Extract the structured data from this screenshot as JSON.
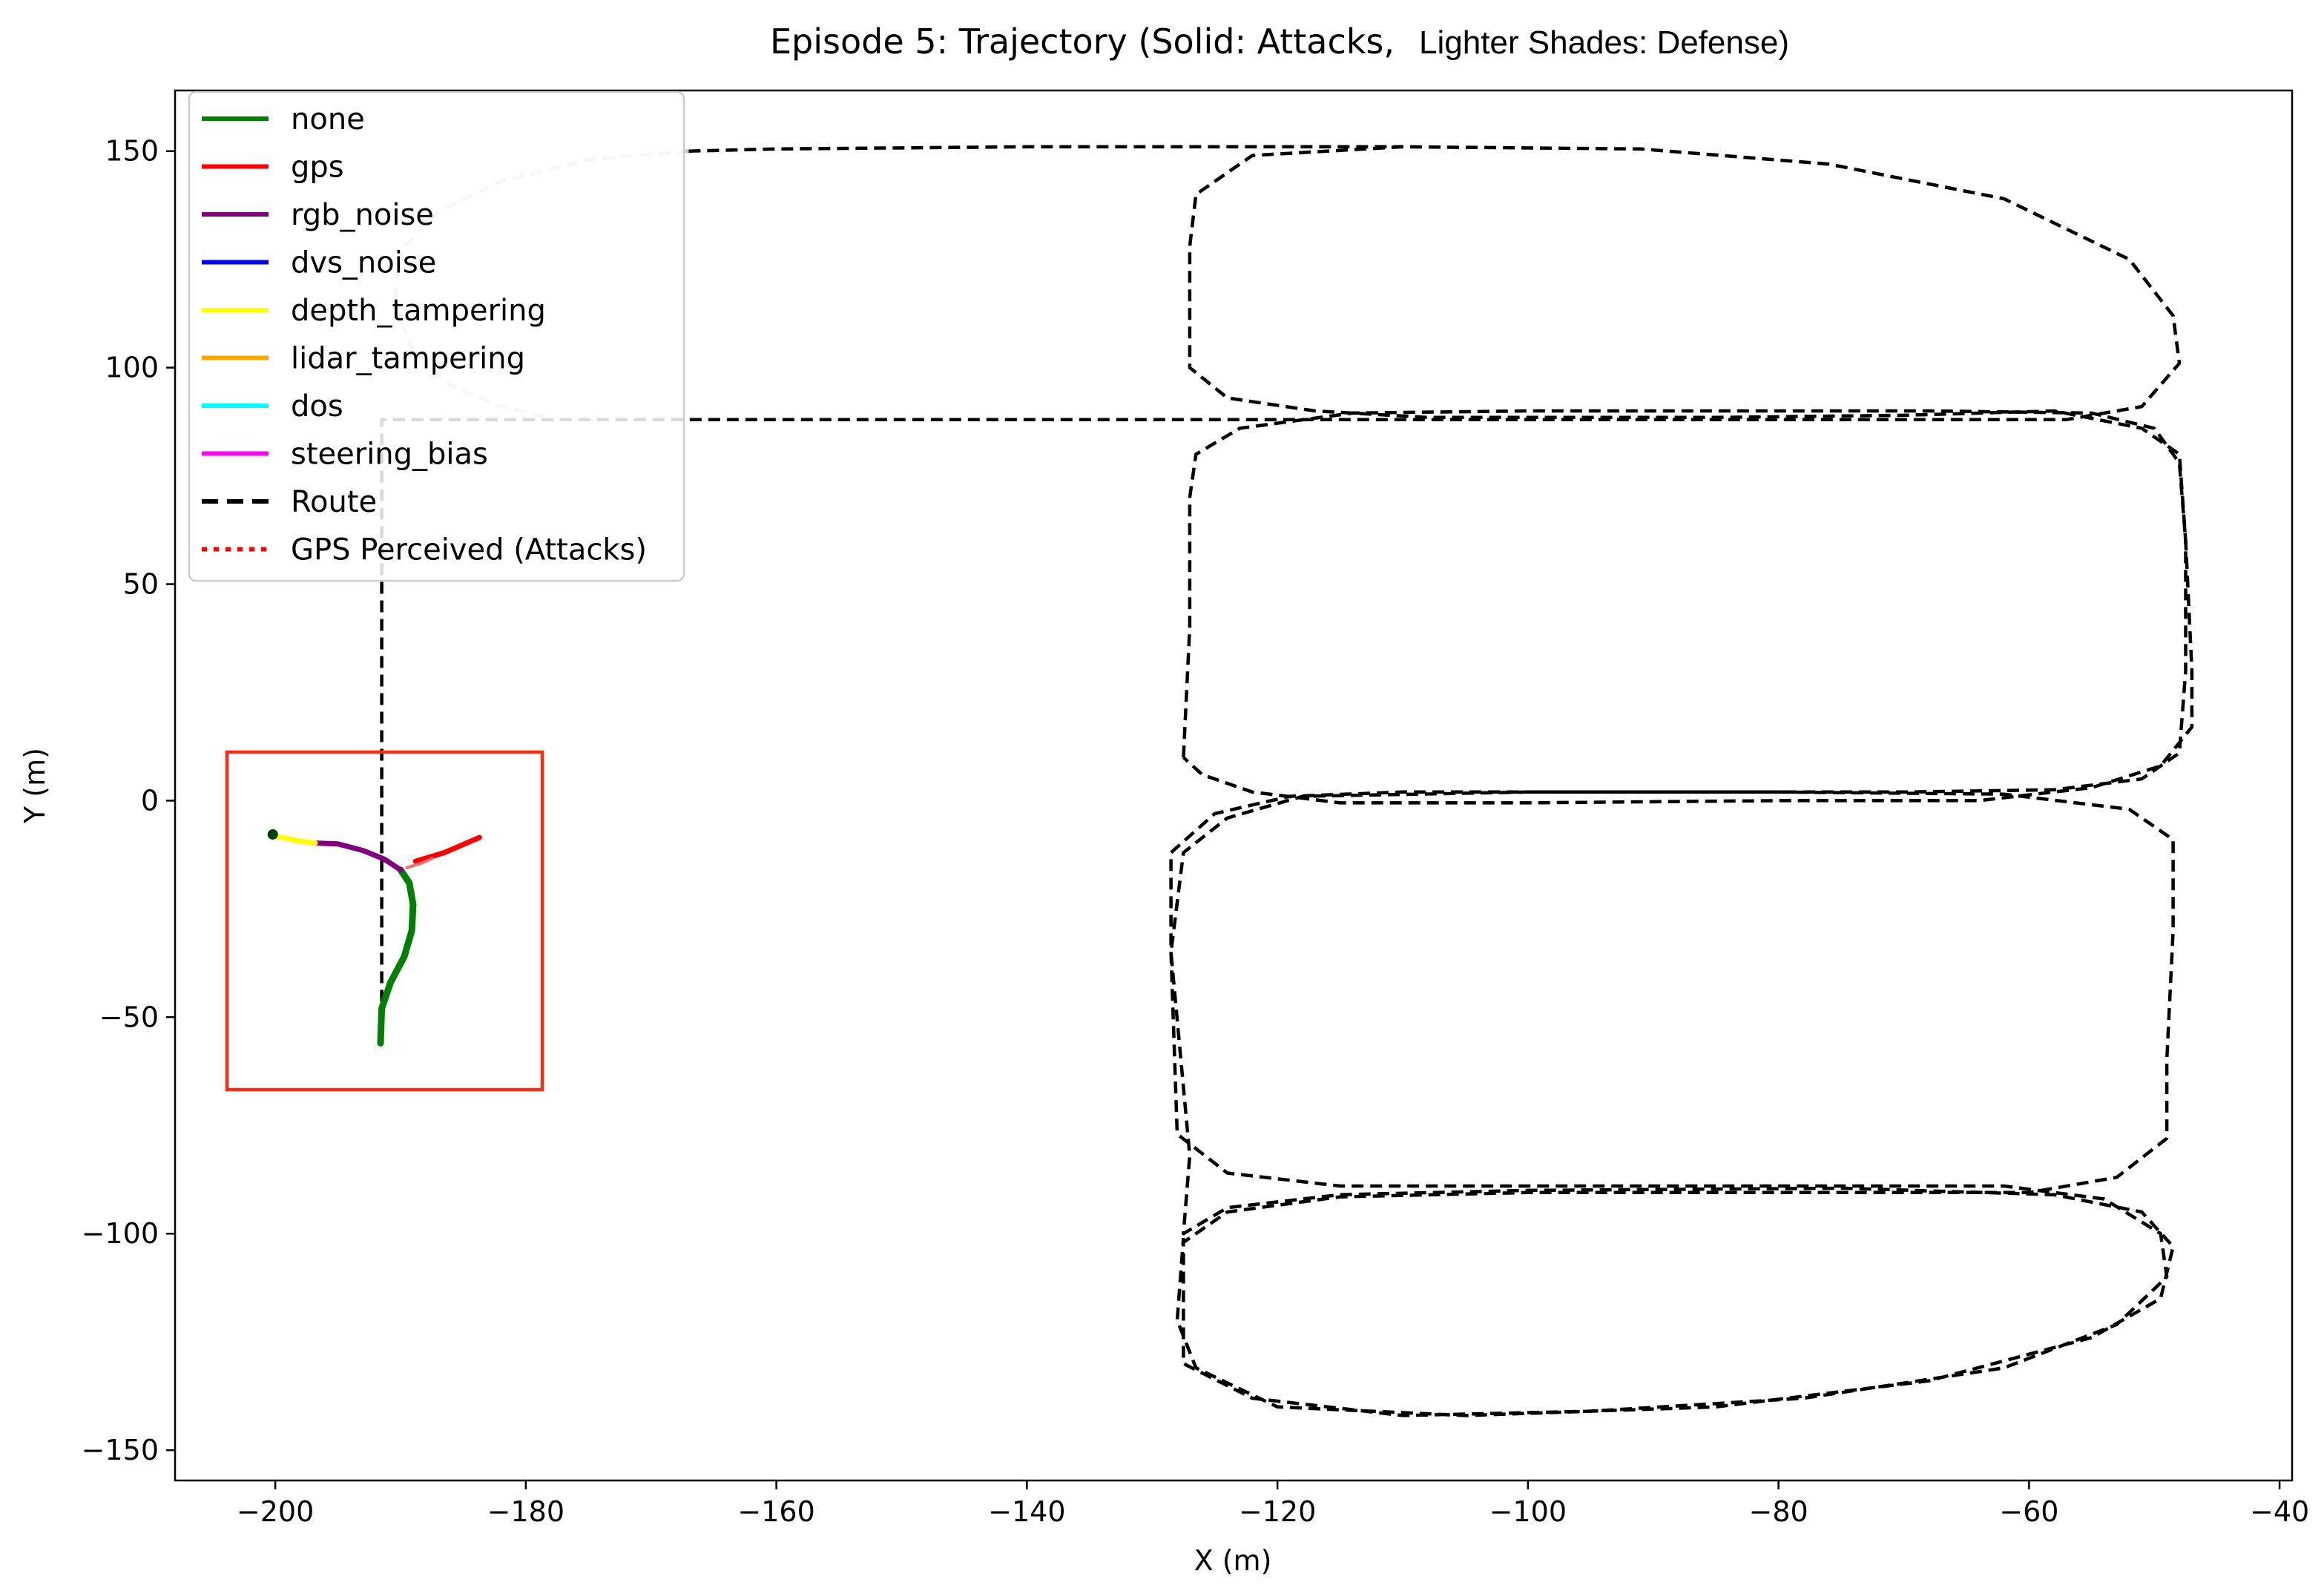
{
  "chart_data": {
    "type": "line",
    "title_main": "Episode 5: Trajectory (Solid: Attacks,",
    "title_sub": "Lighter Shades: Defense)",
    "xlabel": "X (m)",
    "ylabel": "Y (m)",
    "xlim": [
      -208,
      -39
    ],
    "ylim": [
      -157,
      164
    ],
    "xticks": [
      -200,
      -180,
      -160,
      -140,
      -120,
      -100,
      -80,
      -60,
      -40
    ],
    "yticks": [
      -150,
      -100,
      -50,
      0,
      50,
      100,
      150
    ],
    "xtick_labels": [
      "−200",
      "−180",
      "−160",
      "−140",
      "−120",
      "−100",
      "−80",
      "−60",
      "−40"
    ],
    "ytick_labels": [
      "−150",
      "−100",
      "−50",
      "0",
      "50",
      "100",
      "150"
    ],
    "grid": false,
    "legend_position": "top-left",
    "legend": [
      {
        "label": "none",
        "color": "#008000",
        "style": "solid"
      },
      {
        "label": "gps",
        "color": "#ff0000",
        "style": "solid"
      },
      {
        "label": "rgb_noise",
        "color": "#800080",
        "style": "solid"
      },
      {
        "label": "dvs_noise",
        "color": "#0000ff",
        "style": "solid"
      },
      {
        "label": "depth_tampering",
        "color": "#ffff00",
        "style": "solid"
      },
      {
        "label": "lidar_tampering",
        "color": "#ffa500",
        "style": "solid"
      },
      {
        "label": "dos",
        "color": "#00ffff",
        "style": "solid"
      },
      {
        "label": "steering_bias",
        "color": "#ff00ff",
        "style": "solid"
      },
      {
        "label": "Route",
        "color": "#000000",
        "style": "dashed"
      },
      {
        "label": "GPS Perceived (Attacks)",
        "color": "#ff0000",
        "style": "dotted"
      }
    ],
    "route": [
      [
        -191.5,
        -55
      ],
      [
        -191.5,
        40
      ],
      [
        -191.5,
        88
      ],
      [
        -178,
        88
      ],
      [
        -160,
        88
      ],
      [
        -130,
        88
      ],
      [
        -100,
        88
      ],
      [
        -75,
        88
      ],
      [
        -57,
        88
      ],
      [
        -51,
        91
      ],
      [
        -48,
        101
      ],
      [
        -48.5,
        112
      ],
      [
        -52,
        125
      ],
      [
        -62,
        139
      ],
      [
        -76,
        147
      ],
      [
        -91,
        150.5
      ],
      [
        -110,
        151
      ],
      [
        -122,
        149
      ],
      [
        -126.5,
        140
      ],
      [
        -127,
        128
      ],
      [
        -127,
        100
      ],
      [
        -124,
        93
      ],
      [
        -117,
        90
      ],
      [
        -108,
        88.5
      ],
      [
        -95,
        88.5
      ],
      [
        -85,
        88.5
      ],
      [
        -70,
        89
      ],
      [
        -58,
        90
      ],
      [
        -51,
        86
      ],
      [
        -48,
        80
      ],
      [
        -47.5,
        60
      ],
      [
        -47.5,
        30
      ],
      [
        -48,
        11
      ],
      [
        -51,
        5
      ],
      [
        -58,
        2.5
      ],
      [
        -70,
        2
      ],
      [
        -90,
        2
      ],
      [
        -110,
        2
      ],
      [
        -119,
        1
      ],
      [
        -125,
        -3
      ],
      [
        -128.5,
        -12
      ],
      [
        -128.5,
        -35
      ],
      [
        -128,
        -77
      ],
      [
        -124,
        -86
      ],
      [
        -115,
        -89
      ],
      [
        -100,
        -89
      ],
      [
        -80,
        -89
      ],
      [
        -62,
        -89
      ],
      [
        -54,
        -92
      ],
      [
        -49.5,
        -100
      ],
      [
        -49,
        -110
      ],
      [
        -53,
        -121
      ],
      [
        -62,
        -131
      ],
      [
        -78,
        -138
      ],
      [
        -95,
        -141
      ],
      [
        -110,
        -142
      ],
      [
        -122,
        -138
      ],
      [
        -127.5,
        -130
      ],
      [
        -127.5,
        -120
      ],
      [
        -127.5,
        -102
      ],
      [
        -124,
        -95
      ],
      [
        -115,
        -91.5
      ],
      [
        -100,
        -90.5
      ],
      [
        -80,
        -90.5
      ],
      [
        -60,
        -90.5
      ],
      [
        -53,
        -87
      ],
      [
        -49,
        -78
      ],
      [
        -49,
        -60
      ],
      [
        -48.5,
        -30
      ],
      [
        -48.5,
        -9
      ],
      [
        -52,
        -2
      ],
      [
        -62,
        1.5
      ],
      [
        -80,
        2
      ],
      [
        -100,
        2
      ],
      [
        -118,
        1
      ],
      [
        -124,
        -4
      ],
      [
        -127.5,
        -12
      ],
      [
        -128.5,
        -35
      ],
      [
        -127,
        -82
      ],
      [
        -127.5,
        -100
      ],
      [
        -124,
        -94
      ],
      [
        -115,
        -91
      ],
      [
        -100,
        -90
      ],
      [
        -75,
        -89.5
      ],
      [
        -58,
        -91
      ],
      [
        -51,
        -95
      ],
      [
        -48.5,
        -103
      ],
      [
        -49.5,
        -115
      ],
      [
        -55,
        -124
      ],
      [
        -68,
        -134
      ],
      [
        -85,
        -140
      ],
      [
        -105,
        -142
      ],
      [
        -120,
        -140
      ],
      [
        -126.5,
        -131
      ],
      [
        -128,
        -120
      ],
      [
        -127.5,
        -101
      ]
    ],
    "route_upper_loop": [
      [
        -127.5,
        10
      ],
      [
        -127,
        40
      ],
      [
        -127,
        70
      ],
      [
        -126.5,
        80
      ],
      [
        -123,
        86
      ],
      [
        -114,
        89.5
      ],
      [
        -100,
        90
      ],
      [
        -85,
        90
      ],
      [
        -68,
        90
      ],
      [
        -55,
        89.5
      ],
      [
        -50,
        86
      ],
      [
        -48,
        78
      ],
      [
        -47.5,
        60
      ],
      [
        -47,
        30
      ],
      [
        -47,
        17
      ],
      [
        -49.5,
        8
      ],
      [
        -55,
        3
      ],
      [
        -64,
        0
      ],
      [
        -80,
        0
      ],
      [
        -100,
        -0.5
      ],
      [
        -115,
        -0.5
      ],
      [
        -122,
        2
      ],
      [
        -126,
        6
      ],
      [
        -127.5,
        10
      ]
    ],
    "route_light_arc": [
      [
        -167,
        150
      ],
      [
        -175,
        148
      ],
      [
        -182,
        143
      ],
      [
        -187,
        136
      ],
      [
        -190,
        127
      ],
      [
        -190.5,
        115
      ],
      [
        -189,
        104
      ],
      [
        -186,
        96
      ],
      [
        -182,
        91
      ],
      [
        -178,
        88.5
      ]
    ],
    "route_top_segment": [
      [
        -167,
        150
      ],
      [
        -160,
        150.5
      ],
      [
        -140,
        151
      ],
      [
        -125,
        151
      ],
      [
        -115,
        151
      ],
      [
        -110,
        151
      ]
    ],
    "series": [
      {
        "name": "none",
        "color": "#008000",
        "points": [
          [
            -191.6,
            -56
          ],
          [
            -191.5,
            -48
          ],
          [
            -190.8,
            -42
          ],
          [
            -189.7,
            -36
          ],
          [
            -189.1,
            -30
          ],
          [
            -189.0,
            -24
          ],
          [
            -189.3,
            -19
          ],
          [
            -190,
            -16
          ]
        ]
      },
      {
        "name": "rgb_noise",
        "color": "#800080",
        "points": [
          [
            -190,
            -16
          ],
          [
            -191.3,
            -13.5
          ],
          [
            -193,
            -11.5
          ],
          [
            -195,
            -10
          ],
          [
            -196.8,
            -9.8
          ]
        ]
      },
      {
        "name": "depth_tampering",
        "color": "#ffff00",
        "points": [
          [
            -196.8,
            -9.8
          ],
          [
            -198.2,
            -9.3
          ],
          [
            -199.4,
            -8.5
          ],
          [
            -200.3,
            -8.0
          ]
        ]
      },
      {
        "name": "gps",
        "color": "#ff0000",
        "points": [
          [
            -188.8,
            -14
          ],
          [
            -186.5,
            -12
          ],
          [
            -183.7,
            -8.5
          ]
        ]
      },
      {
        "name": "GPS Perceived (Attacks)",
        "color": "#ff6a6a",
        "points": [
          [
            -189.5,
            -15.5
          ],
          [
            -188.4,
            -14.5
          ],
          [
            -187.5,
            -13.4
          ]
        ]
      }
    ],
    "start_marker": [
      -200.2,
      -7.8
    ]
  }
}
